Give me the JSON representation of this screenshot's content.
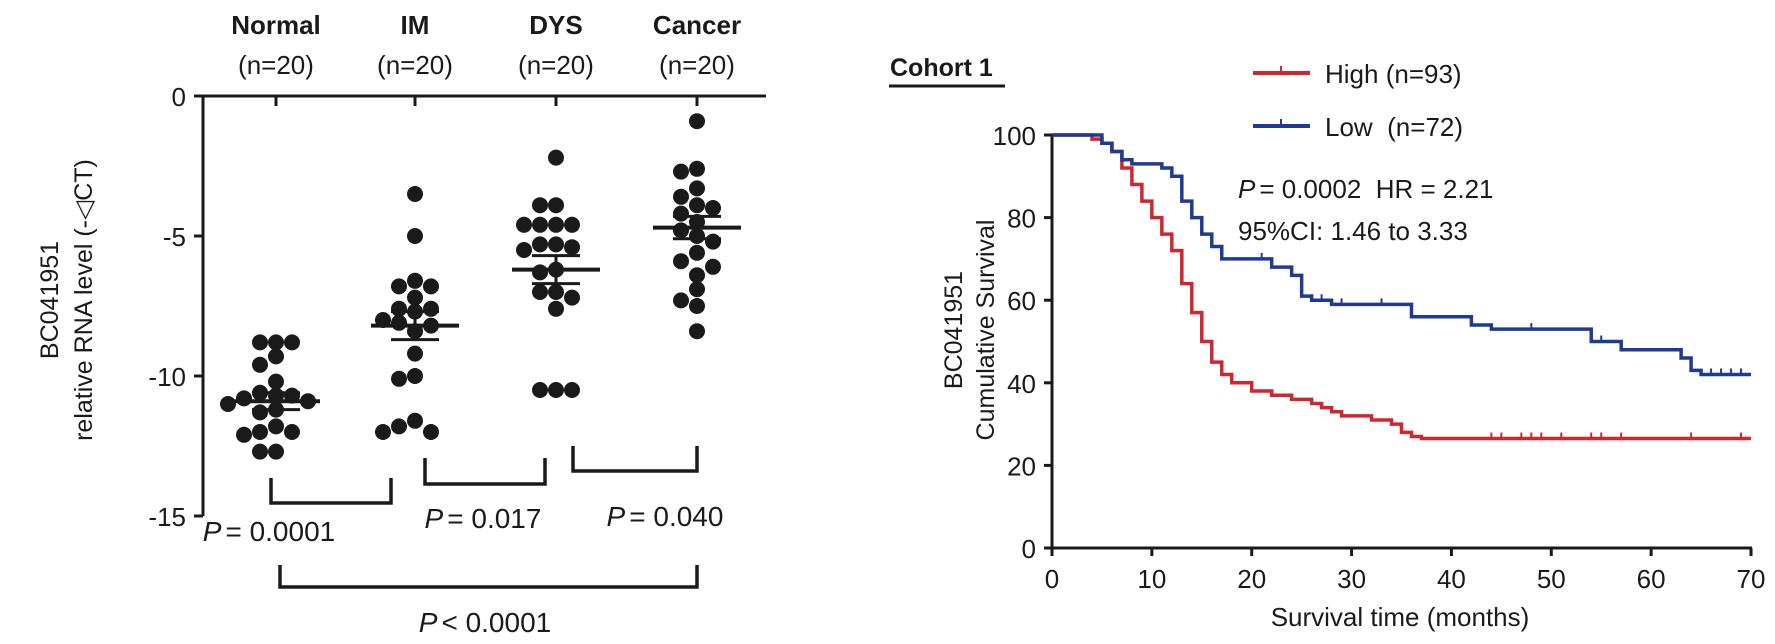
{
  "chart_data": [
    {
      "type": "scatter",
      "subtype": "dot-plot-with-mean-sem",
      "title": "",
      "ylabel_line1": "BC041951",
      "ylabel_line2": "relative RNA level (-◁CT)",
      "ylim": [
        -15,
        0
      ],
      "yticks": [
        "0",
        "-5",
        "-10",
        "-15"
      ],
      "ytick_values": [
        0,
        -5,
        -10,
        -15
      ],
      "categories": [
        "Normal",
        "IM",
        "DYS",
        "Cancer"
      ],
      "category_n": [
        "(n=20)",
        "(n=20)",
        "(n=20)",
        "(n=20)"
      ],
      "series": [
        {
          "name": "Normal",
          "mean": -10.9,
          "sem": 0.3,
          "values": [
            -8.8,
            -8.8,
            -8.8,
            -9.3,
            -9.6,
            -10.2,
            -10.6,
            -10.7,
            -10.7,
            -10.8,
            -10.9,
            -11.0,
            -11.2,
            -11.3,
            -11.8,
            -12.0,
            -12.1,
            -12.0,
            -12.7,
            -12.7
          ]
        },
        {
          "name": "IM",
          "mean": -8.2,
          "sem": 0.5,
          "values": [
            -3.5,
            -5.0,
            -6.8,
            -6.8,
            -6.6,
            -7.2,
            -7.6,
            -7.6,
            -7.7,
            -8.0,
            -8.1,
            -8.2,
            -8.4,
            -9.2,
            -10.0,
            -10.1,
            -11.6,
            -12.0,
            -12.0,
            -11.8
          ]
        },
        {
          "name": "DYS",
          "mean": -6.2,
          "sem": 0.5,
          "values": [
            -2.2,
            -3.9,
            -3.9,
            -4.6,
            -4.6,
            -4.6,
            -4.6,
            -5.3,
            -5.5,
            -5.4,
            -5.3,
            -6.2,
            -6.3,
            -7.0,
            -7.0,
            -7.2,
            -7.6,
            -10.5,
            -10.5,
            -10.5
          ]
        },
        {
          "name": "Cancer",
          "mean": -4.7,
          "sem": 0.4,
          "values": [
            -0.9,
            -2.6,
            -2.7,
            -3.3,
            -3.6,
            -3.9,
            -4.0,
            -4.2,
            -4.5,
            -4.8,
            -5.0,
            -5.2,
            -5.6,
            -5.9,
            -6.1,
            -6.4,
            -6.9,
            -7.3,
            -7.5,
            -8.4
          ]
        }
      ],
      "comparisons": [
        {
          "groups": [
            "Normal",
            "IM"
          ],
          "label_prefix": "P",
          "label": "= 0.0001"
        },
        {
          "groups": [
            "IM",
            "DYS"
          ],
          "label_prefix": "P",
          "label": "= 0.017"
        },
        {
          "groups": [
            "DYS",
            "Cancer"
          ],
          "label_prefix": "P",
          "label": "= 0.040"
        },
        {
          "groups": [
            "Normal",
            "Cancer"
          ],
          "label_prefix": "P",
          "label": "< 0.0001"
        }
      ],
      "grid": false
    },
    {
      "type": "line",
      "subtype": "kaplan-meier",
      "title": "Cohort 1",
      "xlabel": "Survival time (months)",
      "ylabel_line1": "BC041951",
      "ylabel_line2": "Cumulative Survival",
      "xlim": [
        0,
        70
      ],
      "ylim": [
        0,
        100
      ],
      "xticks": [
        "0",
        "10",
        "20",
        "30",
        "40",
        "50",
        "60",
        "70"
      ],
      "xtick_values": [
        0,
        10,
        20,
        30,
        40,
        50,
        60,
        70
      ],
      "yticks": [
        "0",
        "20",
        "40",
        "60",
        "80",
        "100"
      ],
      "ytick_values": [
        0,
        20,
        40,
        60,
        80,
        100
      ],
      "legend_position": "top-right",
      "series": [
        {
          "name": "High",
          "legend_label": "High (n=93)",
          "color": "#d0262f",
          "steps": [
            [
              0,
              100
            ],
            [
              4,
              99
            ],
            [
              5,
              98
            ],
            [
              6,
              96
            ],
            [
              7,
              92
            ],
            [
              8,
              88
            ],
            [
              9,
              84
            ],
            [
              10,
              80
            ],
            [
              11,
              76
            ],
            [
              12,
              72
            ],
            [
              13,
              64
            ],
            [
              14,
              57
            ],
            [
              15,
              50
            ],
            [
              16,
              45
            ],
            [
              17,
              42
            ],
            [
              18,
              40
            ],
            [
              20,
              38
            ],
            [
              22,
              37
            ],
            [
              24,
              36
            ],
            [
              26,
              35
            ],
            [
              27,
              34
            ],
            [
              28,
              33
            ],
            [
              29,
              32
            ],
            [
              32,
              31
            ],
            [
              34,
              30
            ],
            [
              35,
              28
            ],
            [
              36,
              27
            ],
            [
              37,
              26.5
            ],
            [
              70,
              26.5
            ]
          ],
          "censor_x": [
            44,
            45,
            47,
            48,
            49,
            51,
            54,
            55,
            57,
            64,
            69
          ]
        },
        {
          "name": "Low",
          "legend_label": "Low  (n=72)",
          "color": "#1f3a93",
          "steps": [
            [
              0,
              100
            ],
            [
              4,
              100
            ],
            [
              5,
              98
            ],
            [
              6,
              96
            ],
            [
              7,
              94
            ],
            [
              8,
              93
            ],
            [
              11,
              92
            ],
            [
              12,
              90
            ],
            [
              13,
              84
            ],
            [
              14,
              80
            ],
            [
              15,
              76
            ],
            [
              16,
              73
            ],
            [
              17,
              70
            ],
            [
              20,
              70
            ],
            [
              22,
              68
            ],
            [
              24,
              66
            ],
            [
              25,
              61
            ],
            [
              26,
              60
            ],
            [
              28,
              59
            ],
            [
              36,
              56
            ],
            [
              42,
              54
            ],
            [
              44,
              53
            ],
            [
              52,
              53
            ],
            [
              54,
              50
            ],
            [
              57,
              48
            ],
            [
              63,
              46
            ],
            [
              64,
              43
            ],
            [
              65,
              42
            ],
            [
              70,
              42
            ]
          ],
          "censor_x": [
            21,
            25,
            26,
            27,
            29,
            33,
            48,
            55,
            57,
            66,
            67,
            68,
            69
          ]
        }
      ],
      "annotations": [
        {
          "prefix": "P",
          "text": "= 0.0002  HR = 2.21"
        },
        {
          "text": "95%CI: 1.46 to 3.33"
        }
      ],
      "grid": false
    }
  ]
}
